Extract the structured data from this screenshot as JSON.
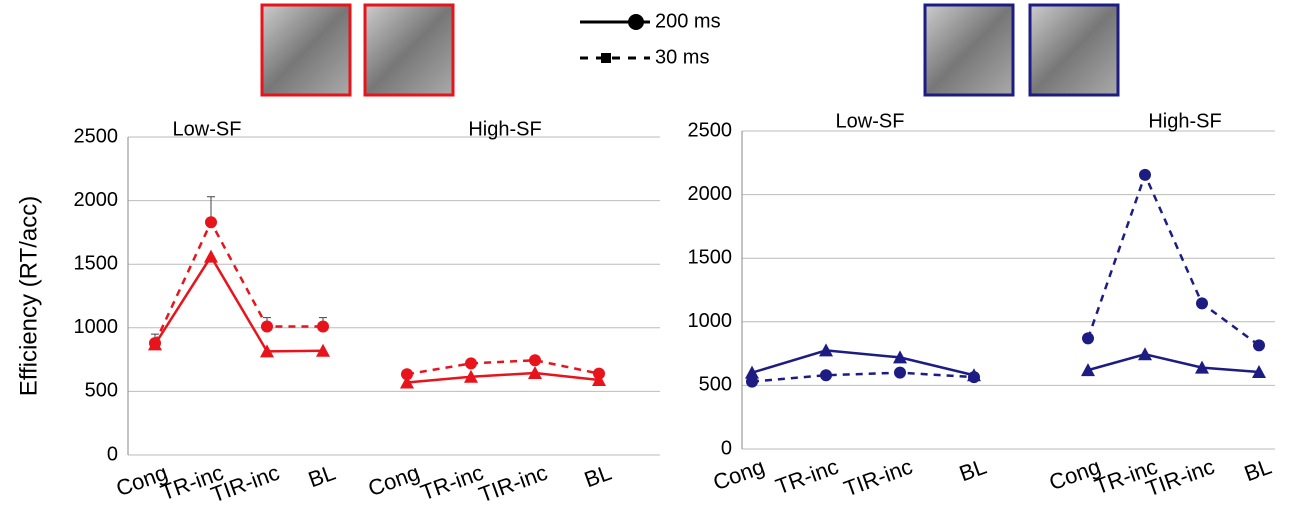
{
  "chart_data": [
    {
      "type": "line",
      "ylabel": "Efficiency (RT/acc)",
      "ylim": [
        0,
        2500
      ],
      "yticks": [
        0,
        500,
        1000,
        1500,
        2000,
        2500
      ],
      "grid": true,
      "color": "#e8141c",
      "groups": [
        {
          "title": "Low-SF",
          "categories": [
            "Cong",
            "TR-inc",
            "TIR-inc",
            "BL"
          ],
          "series": [
            {
              "name": "200 ms",
              "dash": false,
              "marker": "triangle",
              "values": [
                870,
                1560,
                815,
                820
              ]
            },
            {
              "name": "30 ms",
              "dash": true,
              "marker": "circle",
              "values": [
                880,
                1830,
                1010,
                1010
              ],
              "errors": [
                70,
                200,
                70,
                70
              ]
            }
          ]
        },
        {
          "title": "High-SF",
          "categories": [
            "Cong",
            "TR-inc",
            "TIR-inc",
            "BL"
          ],
          "series": [
            {
              "name": "200 ms",
              "dash": false,
              "marker": "triangle",
              "values": [
                570,
                615,
                645,
                590
              ]
            },
            {
              "name": "30 ms",
              "dash": true,
              "marker": "circle",
              "values": [
                635,
                720,
                745,
                640
              ]
            }
          ]
        }
      ]
    },
    {
      "type": "line",
      "ylim": [
        0,
        2500
      ],
      "yticks": [
        0,
        500,
        1000,
        1500,
        2000,
        2500
      ],
      "grid": true,
      "color": "#1c1c82",
      "groups": [
        {
          "title": "Low-SF",
          "categories": [
            "Cong",
            "TR-inc",
            "TIR-inc",
            "BL"
          ],
          "series": [
            {
              "name": "200 ms",
              "dash": false,
              "marker": "triangle",
              "values": [
                600,
                775,
                720,
                580
              ]
            },
            {
              "name": "30 ms",
              "dash": true,
              "marker": "circle",
              "values": [
                530,
                580,
                600,
                565
              ]
            }
          ]
        },
        {
          "title": "High-SF",
          "categories": [
            "Cong",
            "TR-inc",
            "TIR-inc",
            "BL"
          ],
          "series": [
            {
              "name": "200 ms",
              "dash": false,
              "marker": "triangle",
              "values": [
                620,
                745,
                640,
                605
              ]
            },
            {
              "name": "30 ms",
              "dash": true,
              "marker": "circle",
              "values": [
                870,
                2155,
                1145,
                815
              ]
            }
          ]
        }
      ]
    }
  ]
}
